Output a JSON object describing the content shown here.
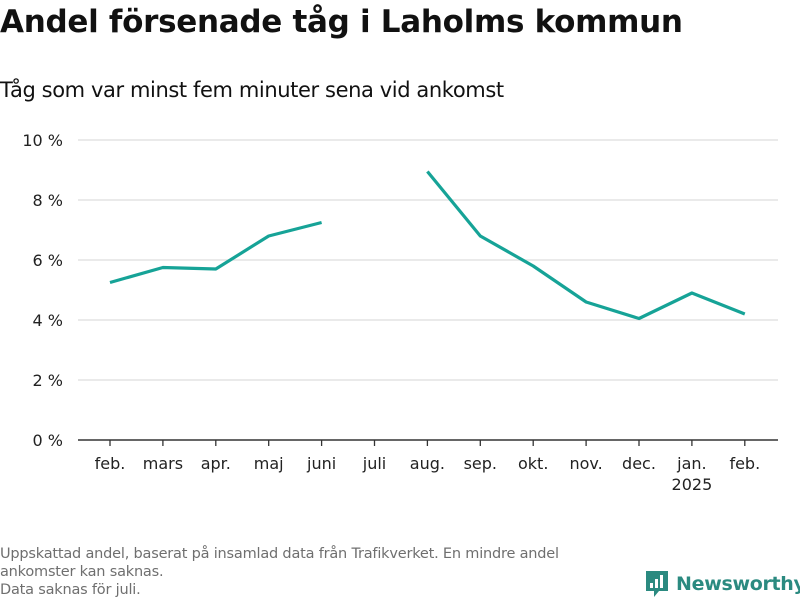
{
  "title": "Andel försenade tåg i Laholms kommun",
  "subtitle": "Tåg som var minst fem minuter sena vid ankomst",
  "footnote": {
    "line1": "Uppskattad andel, baserat på insamlad data från Trafikverket. En mindre andel",
    "line2": "ankomster kan saknas.",
    "line3": "Data saknas för juli."
  },
  "brand": {
    "name": "Newsworthy",
    "icon": "newsworthy-logo-icon",
    "color": "#2b8a80"
  },
  "colors": {
    "line": "#16a397",
    "grid": "#dddddd",
    "axis": "#333333",
    "text": "#222222"
  },
  "chart_data": {
    "type": "line",
    "categories": [
      "feb.",
      "mars",
      "apr.",
      "maj",
      "juni",
      "juli",
      "aug.",
      "sep.",
      "okt.",
      "nov.",
      "dec.",
      "jan.",
      "feb."
    ],
    "year_labels": [
      "",
      "",
      "",
      "",
      "",
      "",
      "",
      "",
      "",
      "",
      "",
      "2025",
      ""
    ],
    "series": [
      {
        "values": [
          5.25,
          5.75,
          5.7,
          6.8,
          7.25,
          null,
          8.95,
          6.8,
          5.8,
          4.6,
          4.05,
          4.9,
          4.2
        ]
      }
    ],
    "y_ticks": [
      0,
      2,
      4,
      6,
      8,
      10
    ],
    "y_tick_labels": [
      "0 %",
      "2 %",
      "4 %",
      "6 %",
      "8 %",
      "10 %"
    ],
    "ylim": [
      0,
      10
    ],
    "xlabel": "",
    "ylabel": "",
    "grid": true,
    "legend": "none"
  }
}
